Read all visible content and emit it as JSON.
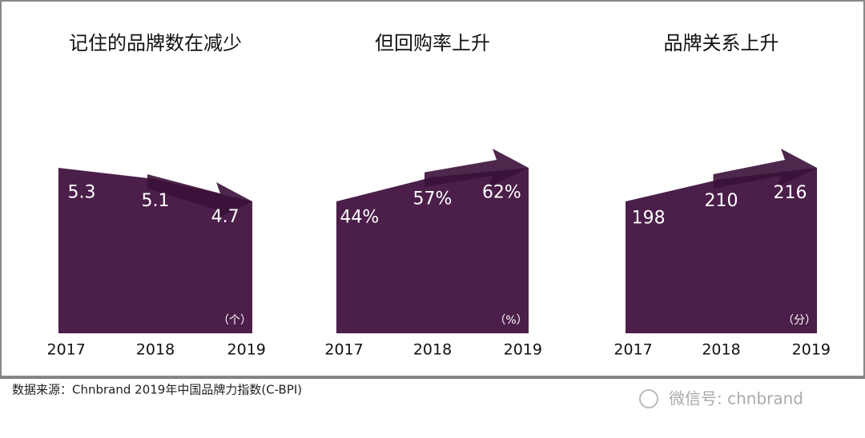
{
  "chart_data": [
    {
      "type": "area",
      "title": "记住的品牌数在减少",
      "categories": [
        "2017",
        "2018",
        "2019"
      ],
      "values": [
        5.3,
        5.1,
        4.7
      ],
      "unit": "（个）",
      "color": "#4b1f49"
    },
    {
      "type": "area",
      "title": "但回购率上升",
      "categories": [
        "2017",
        "2018",
        "2019"
      ],
      "values": [
        44,
        57,
        62
      ],
      "value_labels": [
        "44%",
        "57%",
        "62%"
      ],
      "unit": "（%）",
      "color": "#4b1f49"
    },
    {
      "type": "area",
      "title": "品牌关系上升",
      "categories": [
        "2017",
        "2018",
        "2019"
      ],
      "values": [
        198,
        210,
        216
      ],
      "unit": "（分）",
      "color": "#4b1f49"
    }
  ],
  "footer": {
    "source": "数据来源：Chnbrand 2019年中国品牌力指数(C-BPI)",
    "watermark": "微信号: chnbrand"
  }
}
